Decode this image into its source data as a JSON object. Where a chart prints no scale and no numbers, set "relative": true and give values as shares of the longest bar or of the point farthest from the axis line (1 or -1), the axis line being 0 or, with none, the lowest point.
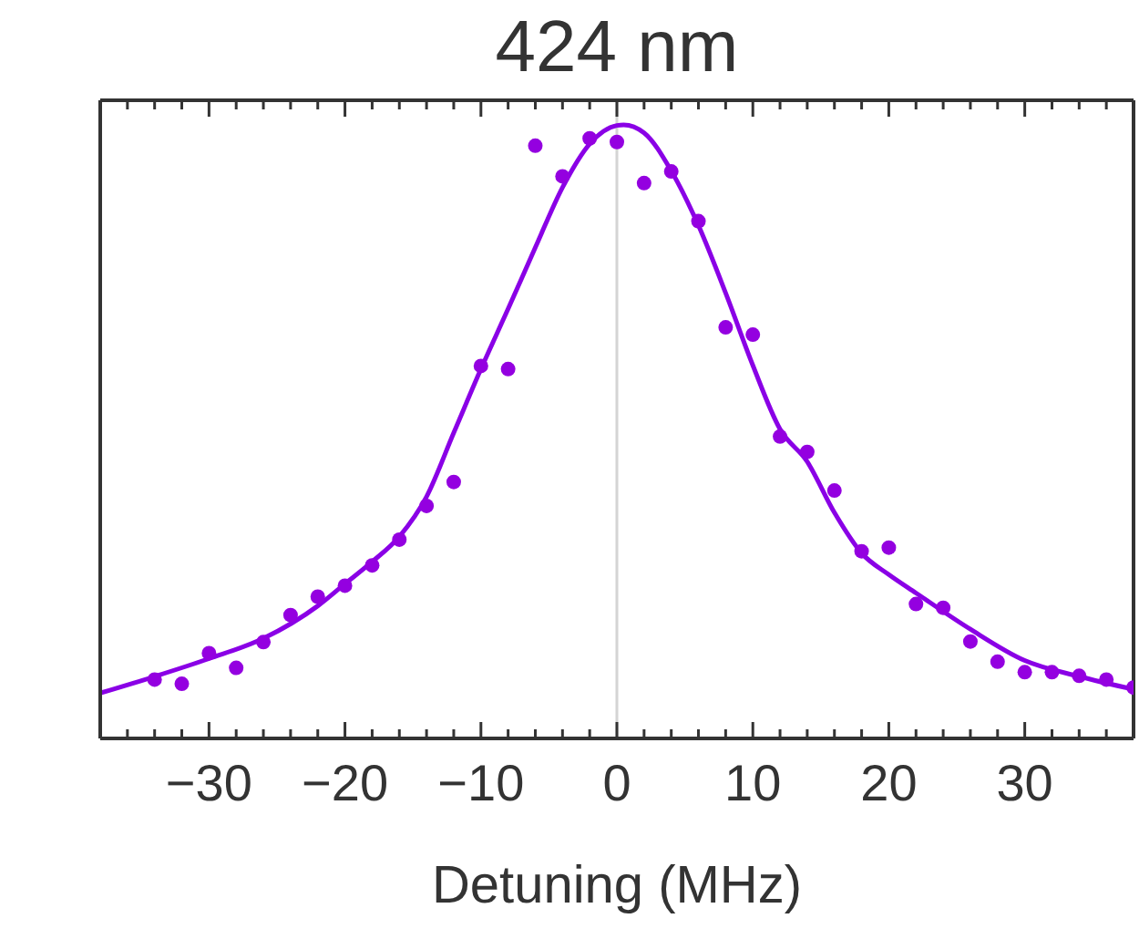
{
  "chart_data": {
    "type": "scatter",
    "title": "424 nm",
    "xlabel": "Detuning (MHz)",
    "relative": true,
    "xlim": [
      -38,
      38
    ],
    "xticks": [
      {
        "value": -38,
        "label": null
      },
      {
        "value": -36,
        "label": null
      },
      {
        "value": -34,
        "label": null
      },
      {
        "value": -32,
        "label": null
      },
      {
        "value": -30,
        "label": "−30"
      },
      {
        "value": -28,
        "label": null
      },
      {
        "value": -26,
        "label": null
      },
      {
        "value": -24,
        "label": null
      },
      {
        "value": -22,
        "label": null
      },
      {
        "value": -20,
        "label": "−20"
      },
      {
        "value": -18,
        "label": null
      },
      {
        "value": -16,
        "label": null
      },
      {
        "value": -14,
        "label": null
      },
      {
        "value": -12,
        "label": null
      },
      {
        "value": -10,
        "label": "−10"
      },
      {
        "value": -8,
        "label": null
      },
      {
        "value": -6,
        "label": null
      },
      {
        "value": -4,
        "label": null
      },
      {
        "value": -2,
        "label": null
      },
      0,
      {
        "value": 2,
        "label": null
      },
      {
        "value": 4,
        "label": null
      },
      {
        "value": 6,
        "label": null
      },
      {
        "value": 8,
        "label": null
      },
      10,
      {
        "value": 12,
        "label": null
      },
      {
        "value": 14,
        "label": null
      },
      {
        "value": 16,
        "label": null
      },
      {
        "value": 18,
        "label": null
      },
      20,
      {
        "value": 22,
        "label": null
      },
      {
        "value": 24,
        "label": null
      },
      {
        "value": 26,
        "label": null
      },
      {
        "value": 28,
        "label": null
      },
      30,
      {
        "value": 32,
        "label": null
      },
      {
        "value": 34,
        "label": null
      },
      {
        "value": 36,
        "label": null
      },
      {
        "value": 38,
        "label": null
      }
    ],
    "ref_lines": [
      {
        "axis": "x",
        "value": 0,
        "color": "#d4d4d4"
      }
    ],
    "series": [
      {
        "type": "scatter",
        "marker": "circle",
        "color": "#9400e0",
        "x": [
          -34,
          -32,
          -30,
          -28,
          -26,
          -24,
          -22,
          -20,
          -18,
          -16,
          -14,
          -12,
          -10,
          -8,
          -6,
          -4,
          -2,
          0,
          2,
          4,
          6,
          8,
          10,
          12,
          14,
          16,
          18,
          20,
          22,
          24,
          26,
          28,
          30,
          32,
          34,
          36,
          38
        ],
        "values": [
          0.096,
          0.089,
          0.139,
          0.115,
          0.157,
          0.201,
          0.231,
          0.249,
          0.282,
          0.324,
          0.379,
          0.418,
          0.607,
          0.602,
          0.966,
          0.916,
          0.978,
          0.972,
          0.905,
          0.924,
          0.843,
          0.67,
          0.658,
          0.492,
          0.467,
          0.404,
          0.305,
          0.311,
          0.219,
          0.213,
          0.158,
          0.125,
          0.108,
          0.108,
          0.102,
          0.096,
          0.083
        ]
      },
      {
        "type": "line",
        "marker": "none",
        "color": "#8a00e6",
        "line_style": "solid",
        "x": [
          -38,
          -34,
          -30,
          -26,
          -22,
          -20,
          -18,
          -16,
          -14,
          -12,
          -10,
          -8,
          -6,
          -4,
          -2,
          0,
          0.5,
          2,
          4,
          6,
          8,
          10,
          12,
          14,
          16,
          18,
          20,
          22,
          26,
          30,
          34,
          38
        ],
        "values": [
          0.074,
          0.101,
          0.13,
          0.163,
          0.216,
          0.252,
          0.288,
          0.329,
          0.394,
          0.498,
          0.602,
          0.7,
          0.8,
          0.898,
          0.969,
          0.999,
          1,
          0.987,
          0.925,
          0.836,
          0.726,
          0.608,
          0.504,
          0.451,
          0.368,
          0.302,
          0.267,
          0.237,
          0.178,
          0.127,
          0.101,
          0.08
        ]
      }
    ]
  }
}
